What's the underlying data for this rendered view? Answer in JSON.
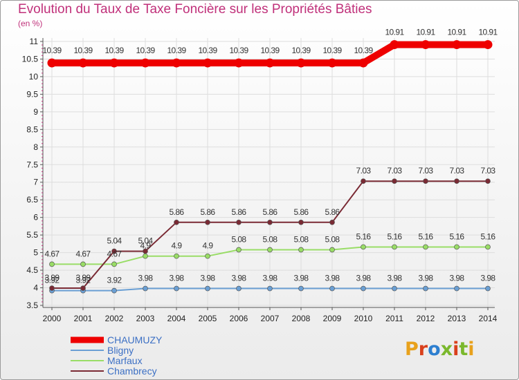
{
  "header": {
    "title": "Evolution du Taux de Taxe Foncière sur les Propriétés Bâties",
    "unit": "(en %)"
  },
  "logo": {
    "text": "Proxiti",
    "letters": [
      "P",
      "r",
      "o",
      "x",
      "i",
      "t",
      "i"
    ],
    "colors": [
      "#e8a11c",
      "#d9401c",
      "#2d7fd0",
      "#7ab82c",
      "#d9401c",
      "#7ab82c",
      "#e8a11c"
    ]
  },
  "chart_data": {
    "type": "line",
    "title": "Evolution du Taux de Taxe Foncière sur les Propriétés Bâties",
    "ylabel": "(en %)",
    "xlabel": "",
    "ylim": [
      3.5,
      11
    ],
    "yticks": [
      "3.5",
      "4",
      "4.5",
      "5",
      "5.5",
      "6",
      "6.5",
      "7",
      "7.5",
      "8",
      "8.5",
      "9",
      "9.5",
      "10",
      "10.5",
      "11"
    ],
    "x": [
      "2000",
      "2001",
      "2002",
      "2003",
      "2004",
      "2005",
      "2006",
      "2007",
      "2008",
      "2009",
      "2010",
      "2011",
      "2012",
      "2013",
      "2014"
    ],
    "series": [
      {
        "name": "CHAUMUZY",
        "color": "#ee0000",
        "values": [
          10.39,
          10.39,
          10.39,
          10.39,
          10.39,
          10.39,
          10.39,
          10.39,
          10.39,
          10.39,
          10.39,
          10.91,
          10.91,
          10.91,
          10.91
        ],
        "labels": [
          "10.39",
          "10.39",
          "10.39",
          "10.39",
          "10.39",
          "10.39",
          "10.39",
          "10.39",
          "10.39",
          "10.39",
          "10.39",
          "10.91",
          "10.91",
          "10.91",
          "10.91"
        ]
      },
      {
        "name": "Bligny",
        "color": "#6a9fd4",
        "values": [
          3.92,
          3.92,
          3.92,
          3.98,
          3.98,
          3.98,
          3.98,
          3.98,
          3.98,
          3.98,
          3.98,
          3.98,
          3.98,
          3.98,
          3.98
        ],
        "labels": [
          "3.92",
          "3.92",
          "3.92",
          "3.98",
          "3.98",
          "3.98",
          "3.98",
          "3.98",
          "3.98",
          "3.98",
          "3.98",
          "3.98",
          "3.98",
          "3.98",
          "3.98"
        ]
      },
      {
        "name": "Marfaux",
        "color": "#99dd66",
        "values": [
          4.67,
          4.67,
          4.67,
          4.9,
          4.9,
          4.9,
          5.08,
          5.08,
          5.08,
          5.08,
          5.16,
          5.16,
          5.16,
          5.16,
          5.16
        ],
        "labels": [
          "4.67",
          "4.67",
          "4.67",
          "4.9",
          "4.9",
          "4.9",
          "5.08",
          "5.08",
          "5.08",
          "5.08",
          "5.16",
          "5.16",
          "5.16",
          "5.16",
          "5.16"
        ]
      },
      {
        "name": "Chambrecy",
        "color": "#7a2a34",
        "values": [
          3.99,
          3.99,
          5.04,
          5.04,
          5.86,
          5.86,
          5.86,
          5.86,
          5.86,
          5.86,
          7.03,
          7.03,
          7.03,
          7.03,
          7.03
        ],
        "labels": [
          "3.99",
          "3.99",
          "5.04",
          "5.04",
          "5.86",
          "5.86",
          "5.86",
          "5.86",
          "5.86",
          "5.86",
          "7.03",
          "7.03",
          "7.03",
          "7.03",
          "7.03"
        ]
      }
    ]
  }
}
